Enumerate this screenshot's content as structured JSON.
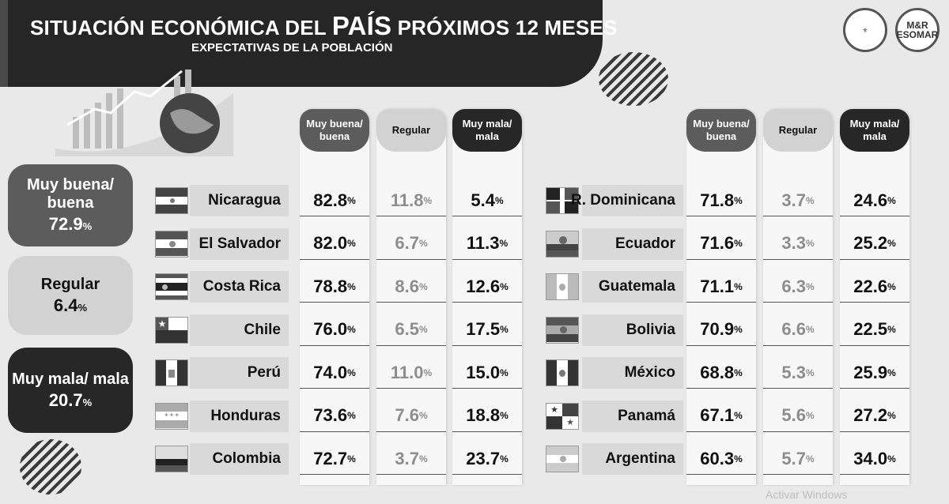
{
  "header": {
    "title_pre": "SITUACIÓN ECONÓMICA DEL ",
    "title_big": "PAÍS",
    "title_post": " PRÓXIMOS 12 MESES",
    "subtitle": "EXPECTATIVAS DE LA POBLACIÓN"
  },
  "logos": [
    {
      "name": "seal-logo",
      "text": ""
    },
    {
      "name": "mr-esomar-logo",
      "text": "M&R ESOMAR"
    }
  ],
  "summary": [
    {
      "label": "Muy buena/ buena",
      "value": "72.9",
      "unit": "%"
    },
    {
      "label": "Regular",
      "value": "6.4",
      "unit": "%"
    },
    {
      "label": "Muy mala/ mala",
      "value": "20.7",
      "unit": "%"
    }
  ],
  "column_headers": [
    "Muy buena/ buena",
    "Regular",
    "Muy mala/ mala"
  ],
  "unit": "%",
  "chart_data": {
    "type": "table",
    "columns": [
      "Muy buena/ buena",
      "Regular",
      "Muy mala/ mala"
    ],
    "left_rows": [
      {
        "country": "Nicaragua",
        "values": [
          "82.8",
          "11.8",
          "5.4"
        ]
      },
      {
        "country": "El Salvador",
        "values": [
          "82.0",
          "6.7",
          "11.3"
        ]
      },
      {
        "country": "Costa Rica",
        "values": [
          "78.8",
          "8.6",
          "12.6"
        ]
      },
      {
        "country": "Chile",
        "values": [
          "76.0",
          "6.5",
          "17.5"
        ]
      },
      {
        "country": "Perú",
        "values": [
          "74.0",
          "11.0",
          "15.0"
        ]
      },
      {
        "country": "Honduras",
        "values": [
          "73.6",
          "7.6",
          "18.8"
        ]
      },
      {
        "country": "Colombia",
        "values": [
          "72.7",
          "3.7",
          "23.7"
        ]
      }
    ],
    "right_rows": [
      {
        "country": "R. Dominicana",
        "values": [
          "71.8",
          "3.7",
          "24.6"
        ]
      },
      {
        "country": "Ecuador",
        "values": [
          "71.6",
          "3.3",
          "25.2"
        ]
      },
      {
        "country": "Guatemala",
        "values": [
          "71.1",
          "6.3",
          "22.6"
        ]
      },
      {
        "country": "Bolivia",
        "values": [
          "70.9",
          "6.6",
          "22.5"
        ]
      },
      {
        "country": "México",
        "values": [
          "68.8",
          "5.3",
          "25.9"
        ]
      },
      {
        "country": "Panamá",
        "values": [
          "67.1",
          "5.6",
          "27.2"
        ]
      },
      {
        "country": "Argentina",
        "values": [
          "60.3",
          "5.7",
          "34.0"
        ]
      }
    ]
  },
  "watermark": "Activar Windows"
}
